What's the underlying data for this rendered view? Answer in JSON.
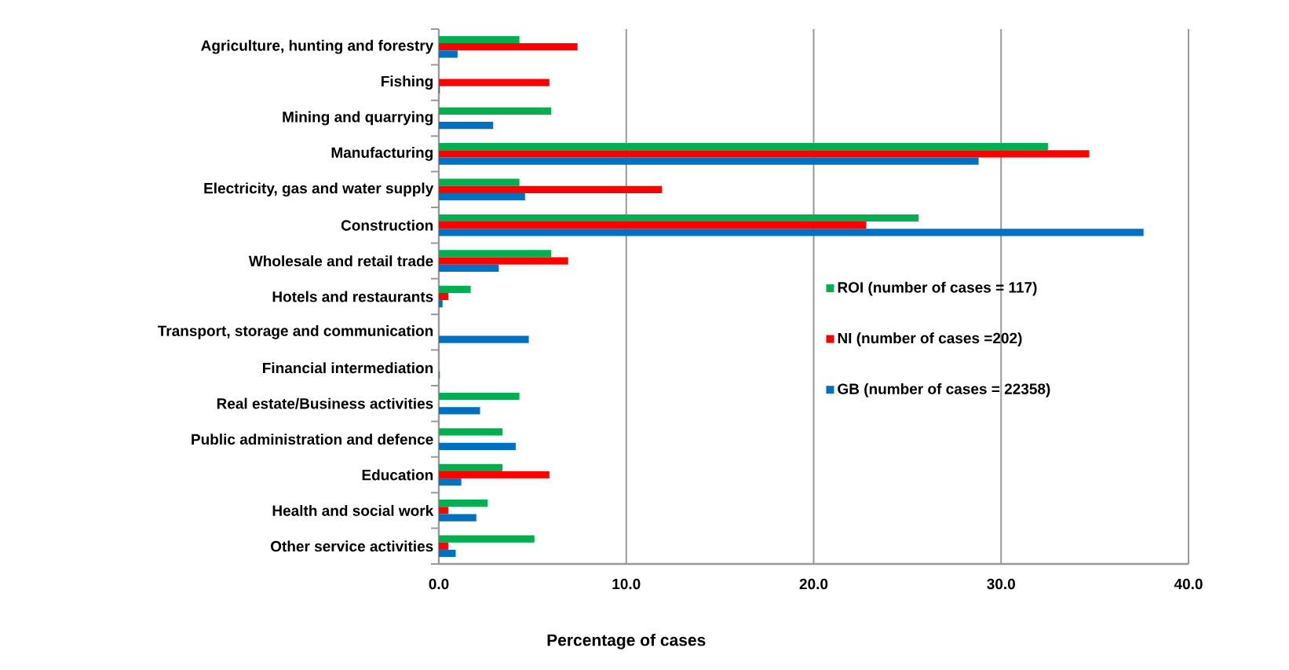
{
  "chart_data": {
    "type": "bar",
    "orientation": "horizontal",
    "xlabel": "Percentage of cases",
    "categories": [
      "Agriculture, hunting and forestry",
      "Fishing",
      "Mining and quarrying",
      "Manufacturing",
      "Electricity, gas and water supply",
      "Construction",
      "Wholesale and retail trade",
      "Hotels and restaurants",
      "Transport, storage and communication",
      "Financial intermediation",
      "Real estate/Business activities",
      "Public administration and defence",
      "Education",
      "Health and social work",
      "Other service activities"
    ],
    "series": [
      {
        "name": "ROI (number of cases = 117)",
        "color": "#00b050",
        "values": [
          4.3,
          null,
          6.0,
          32.5,
          4.3,
          25.6,
          6.0,
          1.7,
          null,
          null,
          4.3,
          3.4,
          3.4,
          2.6,
          5.1
        ]
      },
      {
        "name": "NI (number of cases =202)",
        "color": "#ff0000",
        "values": [
          7.4,
          5.9,
          null,
          34.7,
          11.9,
          22.8,
          6.9,
          0.5,
          null,
          null,
          null,
          null,
          5.9,
          0.5,
          0.5
        ]
      },
      {
        "name": "GB (number of cases = 22358)",
        "color": "#0070c0",
        "values": [
          1.0,
          0.05,
          2.9,
          28.8,
          4.6,
          37.6,
          3.2,
          0.2,
          4.8,
          0.05,
          2.2,
          4.1,
          1.2,
          2.0,
          0.9
        ]
      }
    ],
    "xlim": [
      0,
      40
    ],
    "xticks": [
      {
        "value": 0,
        "label": "0.0"
      },
      {
        "value": 10,
        "label": "10.0"
      },
      {
        "value": 20,
        "label": "20.0"
      },
      {
        "value": 30,
        "label": "30.0"
      },
      {
        "value": 40,
        "label": "40.0"
      }
    ],
    "grid": "x",
    "legend": "right"
  }
}
